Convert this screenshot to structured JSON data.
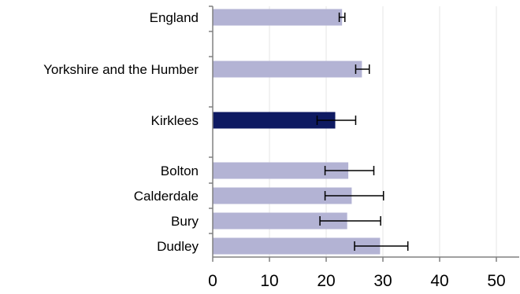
{
  "chart_data": {
    "type": "bar",
    "orientation": "horizontal",
    "title": "",
    "xlabel": "",
    "ylabel": "",
    "xlim": [
      0,
      54
    ],
    "xticks": [
      "0",
      "10",
      "20",
      "30",
      "40",
      "50"
    ],
    "grid": true,
    "legend": "none",
    "series": [
      {
        "values": [
          22.8,
          26.3,
          21.6,
          23.9,
          24.5,
          23.7,
          29.5
        ],
        "ci_lower": [
          22.3,
          25.2,
          18.4,
          19.8,
          19.8,
          18.9,
          25.0
        ],
        "ci_upper": [
          23.3,
          27.6,
          25.2,
          28.4,
          30.1,
          29.6,
          34.4
        ]
      }
    ],
    "categories": [
      "England",
      "Yorkshire and the Humber",
      "Kirklees",
      "Bolton",
      "Calderdale",
      "Bury",
      "Dudley"
    ],
    "bar_colors": [
      "#b3b3d4",
      "#b3b3d4",
      "#0e1a62",
      "#b3b3d4",
      "#b3b3d4",
      "#b3b3d4",
      "#b3b3d4"
    ],
    "grid_color": "#e6e6e6",
    "axis_color": "#808080",
    "errorbar_color": "#000000"
  }
}
